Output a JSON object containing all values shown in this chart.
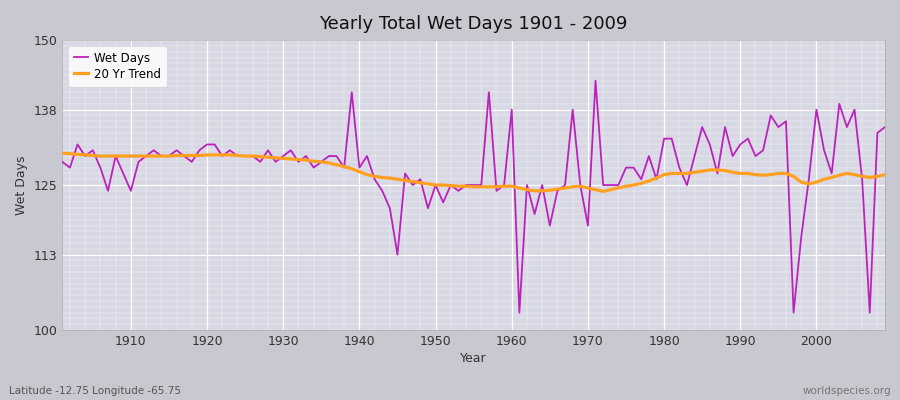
{
  "title": "Yearly Total Wet Days 1901 - 2009",
  "xlabel": "Year",
  "ylabel": "Wet Days",
  "ylim": [
    100,
    150
  ],
  "xlim": [
    1901,
    2009
  ],
  "yticks": [
    100,
    113,
    125,
    138,
    150
  ],
  "xticks": [
    1910,
    1920,
    1930,
    1940,
    1950,
    1960,
    1970,
    1980,
    1990,
    2000
  ],
  "fig_bg_color": "#c8c8d0",
  "plot_bg_color": "#d8d8e4",
  "wet_days_color": "#bb22bb",
  "trend_color": "#ffa020",
  "subtitle": "Latitude -12.75 Longitude -65.75",
  "watermark": "worldspecies.org",
  "years": [
    1901,
    1902,
    1903,
    1904,
    1905,
    1906,
    1907,
    1908,
    1909,
    1910,
    1911,
    1912,
    1913,
    1914,
    1915,
    1916,
    1917,
    1918,
    1919,
    1920,
    1921,
    1922,
    1923,
    1924,
    1925,
    1926,
    1927,
    1928,
    1929,
    1930,
    1931,
    1932,
    1933,
    1934,
    1935,
    1936,
    1937,
    1938,
    1939,
    1940,
    1941,
    1942,
    1943,
    1944,
    1945,
    1946,
    1947,
    1948,
    1949,
    1950,
    1951,
    1952,
    1953,
    1954,
    1955,
    1956,
    1957,
    1958,
    1959,
    1960,
    1961,
    1962,
    1963,
    1964,
    1965,
    1966,
    1967,
    1968,
    1969,
    1970,
    1971,
    1972,
    1973,
    1974,
    1975,
    1976,
    1977,
    1978,
    1979,
    1980,
    1981,
    1982,
    1983,
    1984,
    1985,
    1986,
    1987,
    1988,
    1989,
    1990,
    1991,
    1992,
    1993,
    1994,
    1995,
    1996,
    1997,
    1998,
    1999,
    2000,
    2001,
    2002,
    2003,
    2004,
    2005,
    2006,
    2007,
    2008,
    2009
  ],
  "wet_days": [
    129,
    128,
    132,
    130,
    131,
    128,
    124,
    130,
    127,
    124,
    129,
    130,
    131,
    130,
    130,
    131,
    130,
    129,
    131,
    132,
    132,
    130,
    131,
    130,
    130,
    130,
    129,
    131,
    129,
    130,
    131,
    129,
    130,
    128,
    129,
    130,
    130,
    128,
    141,
    128,
    130,
    126,
    124,
    121,
    113,
    127,
    125,
    126,
    121,
    125,
    122,
    125,
    124,
    125,
    125,
    125,
    141,
    124,
    125,
    138,
    103,
    125,
    120,
    125,
    118,
    124,
    125,
    138,
    125,
    118,
    143,
    125,
    125,
    125,
    128,
    128,
    126,
    130,
    126,
    133,
    133,
    128,
    125,
    130,
    135,
    132,
    127,
    135,
    130,
    132,
    133,
    130,
    131,
    137,
    135,
    136,
    103,
    116,
    126,
    138,
    131,
    127,
    139,
    135,
    138,
    126,
    103,
    134,
    135
  ],
  "trend": [
    130.5,
    130.4,
    130.3,
    130.2,
    130.1,
    130.0,
    130.0,
    130.0,
    130.0,
    130.0,
    130.0,
    130.0,
    130.0,
    130.0,
    130.0,
    130.1,
    130.1,
    130.1,
    130.1,
    130.2,
    130.2,
    130.2,
    130.2,
    130.1,
    130.0,
    130.0,
    129.9,
    129.8,
    129.7,
    129.6,
    129.5,
    129.4,
    129.3,
    129.1,
    129.0,
    128.8,
    128.5,
    128.2,
    127.8,
    127.3,
    126.8,
    126.5,
    126.3,
    126.2,
    126.0,
    125.8,
    125.6,
    125.4,
    125.2,
    125.0,
    125.0,
    124.9,
    124.8,
    124.8,
    124.7,
    124.7,
    124.7,
    124.7,
    124.8,
    124.8,
    124.5,
    124.2,
    124.0,
    124.0,
    124.1,
    124.3,
    124.5,
    124.7,
    124.8,
    124.5,
    124.2,
    123.9,
    124.2,
    124.5,
    124.8,
    125.0,
    125.3,
    125.7,
    126.2,
    126.8,
    127.0,
    127.0,
    127.0,
    127.2,
    127.4,
    127.6,
    127.6,
    127.5,
    127.2,
    127.0,
    127.0,
    126.8,
    126.7,
    126.8,
    127.0,
    127.0,
    126.5,
    125.5,
    125.2,
    125.5,
    126.0,
    126.3,
    126.7,
    127.0,
    126.8,
    126.5,
    126.3,
    126.5,
    126.8
  ]
}
